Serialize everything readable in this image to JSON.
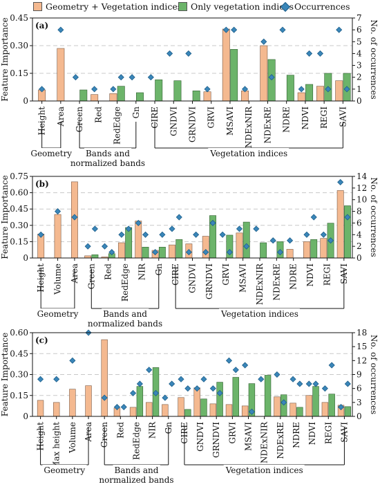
{
  "legend": {
    "items": [
      {
        "label": "Geometry + Vegetation indices",
        "color": "#f4b990"
      },
      {
        "label": "Only vegetation indices",
        "color": "#6cb46a"
      },
      {
        "label": "Occurrences",
        "color": "#3a86b9"
      }
    ]
  },
  "chart_data": [
    {
      "panel_label": "(a)",
      "type": "bar",
      "title": "",
      "ylabel": "Feature Importance",
      "y2label": "No. of occurrences",
      "ylim": [
        0,
        0.45
      ],
      "yticks": [
        "0",
        "0.15",
        "0.30",
        "0.45"
      ],
      "y2lim": [
        0,
        7
      ],
      "y2ticks": [
        "0",
        "1",
        "2",
        "3",
        "4",
        "5",
        "6",
        "7"
      ],
      "grid": "dashed horizontal",
      "categories": [
        "Height",
        "Area",
        "Green",
        "Red",
        "RedEdge",
        "Gn",
        "CIRE",
        "GNDVI",
        "GRNDVI",
        "GRVI",
        "MSAVI",
        "NDExNIR",
        "NDExRE",
        "NDRE",
        "NDVI",
        "REGI",
        "SAVI"
      ],
      "series": [
        {
          "name": "Geometry + Vegetation indices",
          "values": [
            0.06,
            0.285,
            0.0,
            0.035,
            0.04,
            0.0,
            0.0,
            0.0,
            0.0,
            0.05,
            0.39,
            0.055,
            0.3,
            0.0,
            0.045,
            0.08,
            0.11
          ]
        },
        {
          "name": "Only vegetation indices",
          "values": [
            null,
            null,
            0.06,
            0.0,
            0.08,
            0.045,
            0.115,
            0.11,
            0.055,
            0.0,
            0.28,
            0.0,
            0.225,
            0.14,
            0.09,
            0.15,
            0.15
          ]
        },
        {
          "name": "Occurrences",
          "values": [
            1,
            6,
            2,
            1,
            1,
            2,
            2,
            4,
            4,
            1,
            6,
            1,
            5,
            6,
            1,
            4,
            6
          ],
          "values_pure": [
            null,
            null,
            null,
            null,
            2,
            null,
            null,
            null,
            null,
            null,
            6,
            null,
            2,
            null,
            4,
            1,
            1
          ]
        }
      ],
      "groups": [
        {
          "label_lines": [
            "Geometry"
          ],
          "from": 0,
          "to": 1
        },
        {
          "label_lines": [
            "Bands and",
            "normalized bands"
          ],
          "from": 2,
          "to": 5
        },
        {
          "label_lines": [
            "Vegetation indices"
          ],
          "from": 6,
          "to": 16
        }
      ]
    },
    {
      "panel_label": "(b)",
      "type": "bar",
      "title": "",
      "ylabel": "Feature Importance",
      "y2label": "No. of occurrences",
      "ylim": [
        0,
        0.75
      ],
      "yticks": [
        "0",
        "0.15",
        "0.30",
        "0.45",
        "0.60",
        "0.75"
      ],
      "y2lim": [
        0,
        14
      ],
      "y2ticks": [
        "0",
        "2",
        "4",
        "6",
        "8",
        "10",
        "12",
        "14"
      ],
      "grid": "dashed horizontal",
      "categories": [
        "Height",
        "Volume",
        "Area",
        "Green",
        "Red",
        "RedEdge",
        "NIR",
        "Gn",
        "CIRE",
        "GNDVI",
        "GRNDVI",
        "GRVI",
        "MSAVI",
        "NDExNIR",
        "NDExRE",
        "NDRE",
        "NDVI",
        "REGI",
        "SAVI"
      ],
      "series": [
        {
          "name": "Geometry + Vegetation indices",
          "values": [
            0.22,
            0.4,
            0.7,
            0.02,
            0.01,
            0.14,
            0.34,
            0.07,
            0.12,
            0.13,
            0.2,
            0.0,
            0.23,
            0.0,
            0.0,
            0.08,
            0.15,
            0.18,
            0.62
          ]
        },
        {
          "name": "Only vegetation indices",
          "values": [
            null,
            null,
            null,
            0.03,
            0.04,
            0.28,
            0.1,
            0.1,
            0.17,
            0.0,
            0.39,
            0.21,
            0.33,
            0.14,
            0.15,
            0.0,
            0.17,
            0.32,
            0.48
          ]
        },
        {
          "name": "Occurrences",
          "values": [
            4,
            8,
            7,
            2,
            2,
            4,
            6,
            1,
            5,
            1,
            1,
            4,
            5,
            5,
            3,
            3,
            4,
            4,
            13
          ],
          "values_pure": [
            null,
            null,
            null,
            5,
            1,
            5,
            4,
            4,
            7,
            4,
            6,
            1,
            2,
            null,
            1,
            null,
            7,
            3,
            7
          ]
        }
      ],
      "groups": [
        {
          "label_lines": [
            "Geometry"
          ],
          "from": 0,
          "to": 2
        },
        {
          "label_lines": [
            "Bands and",
            "normalized bands"
          ],
          "from": 3,
          "to": 7
        },
        {
          "label_lines": [
            "Vegetation indices"
          ],
          "from": 8,
          "to": 18
        }
      ]
    },
    {
      "panel_label": "(c)",
      "type": "bar",
      "title": "",
      "ylabel": "Feature Importance",
      "y2label": "No. of occurrences",
      "ylim": [
        0,
        0.6
      ],
      "yticks": [
        "0",
        "0.15",
        "0.30",
        "0.45",
        "0.60"
      ],
      "y2lim": [
        0,
        18
      ],
      "y2ticks": [
        "0",
        "3",
        "6",
        "9",
        "12",
        "15",
        "18"
      ],
      "grid": "dashed horizontal",
      "categories": [
        "Height",
        "Max height",
        "Volume",
        "Area",
        "Green",
        "Red",
        "RedEdge",
        "NIR",
        "Gn",
        "CIRE",
        "GNDVI",
        "GRNDVI",
        "GRVI",
        "MSAVI",
        "NDExNIR",
        "NDExRE",
        "NDRE",
        "NDVI",
        "REGI",
        "SAVI"
      ],
      "series": [
        {
          "name": "Geometry + Vegetation indices",
          "values": [
            0.115,
            0.1,
            0.195,
            0.22,
            0.55,
            0.06,
            0.065,
            0.1,
            0.085,
            0.135,
            0.205,
            0.09,
            0.085,
            0.075,
            0.0,
            0.14,
            0.095,
            0.15,
            0.1,
            0.08
          ]
        },
        {
          "name": "Only vegetation indices",
          "values": [
            null,
            null,
            null,
            null,
            null,
            0.0,
            0.215,
            0.35,
            0.0,
            0.05,
            0.125,
            0.245,
            0.28,
            0.235,
            0.295,
            0.155,
            0.065,
            0.215,
            0.16,
            0.07
          ]
        },
        {
          "name": "Occurrences",
          "values": [
            8,
            8,
            12,
            18,
            4,
            2,
            5,
            10,
            4,
            8,
            6,
            6,
            12,
            11,
            8,
            9,
            8,
            7,
            6,
            2
          ],
          "values_pure": [
            null,
            null,
            null,
            null,
            null,
            2,
            7,
            5,
            7,
            6,
            8,
            5,
            10,
            1,
            null,
            3,
            7,
            7,
            11,
            7
          ]
        }
      ],
      "groups": [
        {
          "label_lines": [
            "Geometry"
          ],
          "from": 0,
          "to": 3
        },
        {
          "label_lines": [
            "Bands and",
            "normalized bands"
          ],
          "from": 4,
          "to": 8
        },
        {
          "label_lines": [
            "Vegetation indices"
          ],
          "from": 9,
          "to": 19
        }
      ]
    }
  ]
}
